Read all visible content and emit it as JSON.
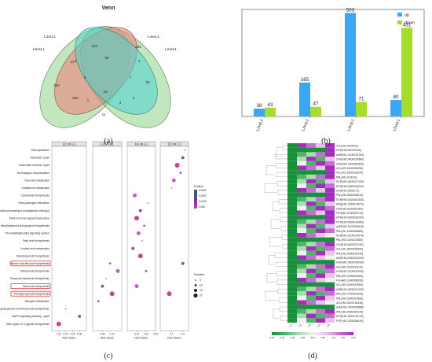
{
  "captions": {
    "a": "(a)",
    "b": "(b)",
    "c": "(c)",
    "d": "(d)"
  },
  "venn": {
    "title": "Venn",
    "sets": [
      {
        "name": "L3vsL1",
        "color": "#f07c77"
      },
      {
        "name": "L4vsL1",
        "color": "#4fd1cf"
      },
      {
        "name": "L5vsL1",
        "color": "#8fd48a"
      },
      {
        "name": "L2vsL1",
        "color": "#8fd48a"
      }
    ],
    "counts": [
      "11",
      "133",
      "394",
      "32",
      "300",
      "32",
      "8",
      "7",
      "4",
      "1",
      "150",
      "10",
      "2",
      "3",
      "11",
      "5"
    ]
  },
  "bar_panel": {
    "legend": [
      {
        "name": "up",
        "color": "#3aa6f5"
      },
      {
        "name": "down",
        "color": "#a6dc2a"
      }
    ]
  },
  "chart_data": [
    {
      "type": "bar",
      "categories": [
        "L2vsL1",
        "L3vsL1",
        "L4vsL1",
        "L5vsL1"
      ],
      "series": [
        {
          "name": "up",
          "values": [
            38,
            165,
            503,
            80
          ]
        },
        {
          "name": "down",
          "values": [
            43,
            47,
            71,
            431
          ]
        }
      ],
      "ylim": [
        0,
        520
      ]
    },
    {
      "type": "scatter",
      "panels": [
        "L2 vs L1",
        "L3 vs L1",
        "L4 vs L1",
        "L5 vs L1"
      ],
      "pathways": [
        "DNA replication",
        "Mismatch repair",
        "Nucleotide excision repair",
        "Homologous recombination",
        "Pyruvate metabolism",
        "Glutathione metabolism",
        "Carotenoid biosynthesis",
        "Plant-pathogen interaction",
        "Protein processing in endoplasmic reticulum",
        "Plant hormone signal transduction",
        "Stilbenoid, diarylheptanoid and gingerol biosynthesis",
        "Phosphatidylinositol signaling system",
        "Fatty acid biosynthesis",
        "Linoleic acid metabolism",
        "Monoterpenoid biosynthesis",
        "Flavone and flavonol biosynthesis",
        "Diterpenoid biosynthesis",
        "Terpenoid backbone biosynthesis",
        "Flavonoid biosynthesis",
        "Phenylpropanoid biosynthesis",
        "Nitrogen metabolism",
        "Sesquiterpenoid and triterpenoid biosynthesis",
        "MAPK signaling pathway - plant",
        "Other types of O-glycan biosynthesis"
      ],
      "highlighted": [
        "Flavone and flavonol biosynthesis",
        "Flavonoid biosynthesis",
        "Phenylpropanoid biosynthesis"
      ],
      "points": [
        {
          "panel": 0,
          "pathway": 21,
          "x": 0.04
        },
        {
          "panel": 0,
          "pathway": 22,
          "x": 0.08
        },
        {
          "panel": 0,
          "pathway": 23,
          "x": 0.02
        },
        {
          "panel": 1,
          "pathway": 15,
          "x": 0.09
        },
        {
          "panel": 1,
          "pathway": 16,
          "x": 0.13
        },
        {
          "panel": 1,
          "pathway": 17,
          "x": 0.07
        },
        {
          "panel": 1,
          "pathway": 18,
          "x": 0.05
        },
        {
          "panel": 1,
          "pathway": 19,
          "x": 0.1
        },
        {
          "panel": 1,
          "pathway": 20,
          "x": 0.03
        },
        {
          "panel": 2,
          "pathway": 6,
          "x": 0.09
        },
        {
          "panel": 2,
          "pathway": 7,
          "x": 0.16
        },
        {
          "panel": 2,
          "pathway": 8,
          "x": 0.12
        },
        {
          "panel": 2,
          "pathway": 9,
          "x": 0.1
        },
        {
          "panel": 2,
          "pathway": 10,
          "x": 0.14
        },
        {
          "panel": 2,
          "pathway": 11,
          "x": 0.11
        },
        {
          "panel": 2,
          "pathway": 12,
          "x": 0.13
        },
        {
          "panel": 2,
          "pathway": 13,
          "x": 0.08
        },
        {
          "panel": 2,
          "pathway": 14,
          "x": 0.12
        },
        {
          "panel": 2,
          "pathway": 16,
          "x": 0.15
        },
        {
          "panel": 2,
          "pathway": 18,
          "x": 0.1
        },
        {
          "panel": 3,
          "pathway": 0,
          "x": 0.22
        },
        {
          "panel": 3,
          "pathway": 1,
          "x": 0.2
        },
        {
          "panel": 3,
          "pathway": 2,
          "x": 0.15
        },
        {
          "panel": 3,
          "pathway": 3,
          "x": 0.18
        },
        {
          "panel": 3,
          "pathway": 4,
          "x": 0.12
        },
        {
          "panel": 3,
          "pathway": 5,
          "x": 0.1
        },
        {
          "panel": 3,
          "pathway": 15,
          "x": 0.2
        },
        {
          "panel": 3,
          "pathway": 19,
          "x": 0.08
        }
      ],
      "xlabel": "Rich factor",
      "xticks": [
        [
          "0.02",
          "0.04",
          "0.06",
          "0.08"
        ],
        [
          "0.05",
          "0.10"
        ],
        [
          "0.10",
          "0.15",
          "0.20"
        ],
        [
          "0.1",
          "0.2"
        ]
      ],
      "pvalue_legend": {
        "title": "Pvalue",
        "ticks": [
          "0.0400",
          "0.0200",
          "0.0100",
          "0.005"
        ]
      },
      "number_legend": {
        "title": "Number",
        "ticks": [
          "5",
          "10",
          "15",
          "20"
        ]
      }
    },
    {
      "type": "heatmap",
      "columns": [
        "L1",
        "L2",
        "L3",
        "L4",
        "L5"
      ],
      "scale_ticks": [
        "-2.00",
        "-1.50",
        "-1.00",
        "-0.50",
        "0.00",
        "0.50",
        "1.00",
        "1.50",
        "2.00"
      ],
      "rows": [
        "4CL(HD.1504222)",
        "DFR(HD.06G00240)",
        "ANR(HD.1200016700)",
        "CHS(HD.0400020660)",
        "anDEHD.0300002460)",
        "4CL(HD.1500008250)",
        "4CL(HD.1500016220)",
        "PAL(HD.100010)",
        "SCR(HD.0600027100)",
        "DFR(HD.0400026220)",
        "SCR(HD.0300171)",
        "PAL(HD.0600006610)",
        "F3'H(HD.0300004300)",
        "ANS(HD.1200014070)",
        "CHI(HD.0200002260)",
        "F3H(HD.0100029710)",
        "DFR(HD.0600036230)",
        "F3'H(HD.0500015480)",
        "anDEHD.0100025400)",
        "PAL(HD.1500006660)",
        "SCR(HD.0100014070)",
        "PAL(HD.1100022880)",
        "C4H(HD.0600037150)",
        "4CL(HD.0500029590)",
        "PAL(HD.0900010040)",
        "ANS(HD.0900031230)",
        "anDEHD.0600014030)",
        "4CL(HD.0100011100)",
        "CHS(HD.0100022090)",
        "PAL(HD.0200004060)",
        "F3H(HD.1400008030)",
        "4CL(HD.0200037060)",
        "ANR(HD.0600021220)",
        "PAL(HD.0700003630)",
        "PAL(HD.0200024550)",
        "4CL(HD.0402218430)",
        "anDEHD.0300018980)",
        "PAL(HD.0500035140)",
        "DFR(HD.1500019720)",
        "FHT(HD.1200008190)"
      ]
    }
  ]
}
